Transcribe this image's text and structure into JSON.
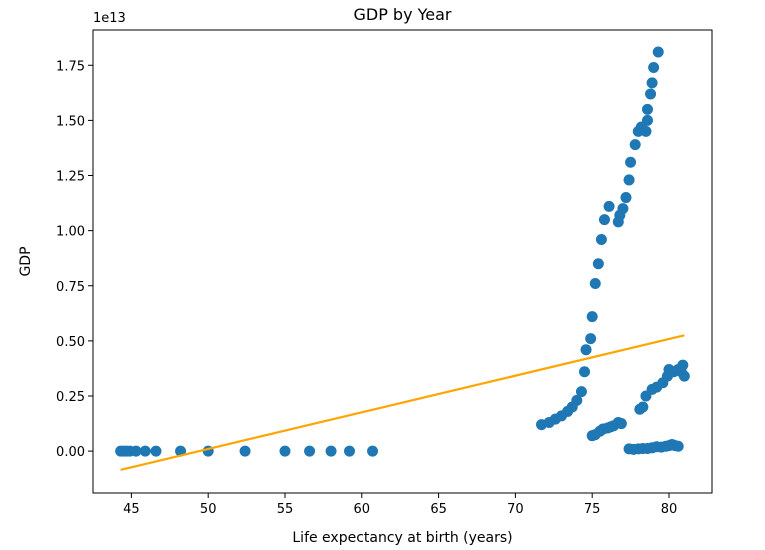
{
  "chart_data": {
    "type": "scatter",
    "title": "GDP by Year",
    "xlabel": "Life expectancy at birth (years)",
    "ylabel": "GDP",
    "y_offset_label": "1e13",
    "xlim": [
      42.5,
      82.8
    ],
    "ylim": [
      -0.19,
      1.91
    ],
    "y_unit_multiplier": 10000000000000.0,
    "xticks": [
      45,
      50,
      55,
      60,
      65,
      70,
      75,
      80
    ],
    "xtick_labels": [
      "45",
      "50",
      "55",
      "60",
      "65",
      "70",
      "75",
      "80"
    ],
    "yticks": [
      0,
      0.25,
      0.5,
      0.75,
      1.0,
      1.25,
      1.5,
      1.75
    ],
    "ytick_labels": [
      "0.00",
      "0.25",
      "0.50",
      "0.75",
      "1.00",
      "1.25",
      "1.50",
      "1.75"
    ],
    "grid": false,
    "colors": {
      "points": "#1f77b4",
      "trend": "#ffa500"
    },
    "points": [
      [
        44.3,
        0
      ],
      [
        44.5,
        0
      ],
      [
        44.7,
        0
      ],
      [
        44.9,
        0
      ],
      [
        45.3,
        0
      ],
      [
        45.9,
        0
      ],
      [
        46.6,
        0
      ],
      [
        48.2,
        0
      ],
      [
        50.0,
        0
      ],
      [
        52.4,
        0
      ],
      [
        55.0,
        0
      ],
      [
        56.6,
        0
      ],
      [
        58.0,
        0
      ],
      [
        59.2,
        0
      ],
      [
        60.7,
        0
      ],
      [
        71.7,
        0.12
      ],
      [
        72.2,
        0.13
      ],
      [
        72.6,
        0.145
      ],
      [
        73.0,
        0.16
      ],
      [
        73.4,
        0.18
      ],
      [
        73.7,
        0.2
      ],
      [
        74.0,
        0.23
      ],
      [
        74.3,
        0.27
      ],
      [
        74.5,
        0.36
      ],
      [
        74.6,
        0.46
      ],
      [
        74.9,
        0.51
      ],
      [
        75.0,
        0.61
      ],
      [
        75.2,
        0.76
      ],
      [
        75.4,
        0.85
      ],
      [
        75.6,
        0.96
      ],
      [
        75.8,
        1.05
      ],
      [
        76.1,
        1.11
      ],
      [
        76.7,
        1.04
      ],
      [
        76.8,
        1.07
      ],
      [
        77.0,
        1.1
      ],
      [
        77.2,
        1.15
      ],
      [
        77.4,
        1.23
      ],
      [
        77.5,
        1.31
      ],
      [
        77.8,
        1.39
      ],
      [
        78.0,
        1.45
      ],
      [
        78.2,
        1.47
      ],
      [
        78.5,
        1.45
      ],
      [
        78.6,
        1.5
      ],
      [
        78.6,
        1.55
      ],
      [
        78.8,
        1.62
      ],
      [
        78.9,
        1.67
      ],
      [
        79.0,
        1.74
      ],
      [
        79.3,
        1.81
      ],
      [
        75.0,
        0.07
      ],
      [
        75.2,
        0.075
      ],
      [
        75.5,
        0.09
      ],
      [
        75.7,
        0.1
      ],
      [
        76.0,
        0.105
      ],
      [
        76.2,
        0.11
      ],
      [
        76.4,
        0.115
      ],
      [
        76.7,
        0.13
      ],
      [
        76.9,
        0.125
      ],
      [
        78.1,
        0.19
      ],
      [
        78.3,
        0.2
      ],
      [
        78.5,
        0.25
      ],
      [
        78.9,
        0.28
      ],
      [
        79.2,
        0.29
      ],
      [
        79.6,
        0.31
      ],
      [
        79.9,
        0.34
      ],
      [
        80.0,
        0.37
      ],
      [
        80.3,
        0.36
      ],
      [
        80.6,
        0.37
      ],
      [
        80.8,
        0.36
      ],
      [
        80.9,
        0.39
      ],
      [
        81.0,
        0.34
      ],
      [
        77.4,
        0.01
      ],
      [
        77.7,
        0.008
      ],
      [
        78.0,
        0.01
      ],
      [
        78.3,
        0.012
      ],
      [
        78.6,
        0.012
      ],
      [
        78.9,
        0.015
      ],
      [
        79.2,
        0.02
      ],
      [
        79.5,
        0.018
      ],
      [
        79.8,
        0.022
      ],
      [
        80.0,
        0.025
      ],
      [
        80.2,
        0.03
      ],
      [
        80.4,
        0.025
      ],
      [
        80.6,
        0.022
      ]
    ],
    "trend_line": {
      "x": [
        44.3,
        81.0
      ],
      "y": [
        -0.085,
        0.525
      ]
    }
  }
}
